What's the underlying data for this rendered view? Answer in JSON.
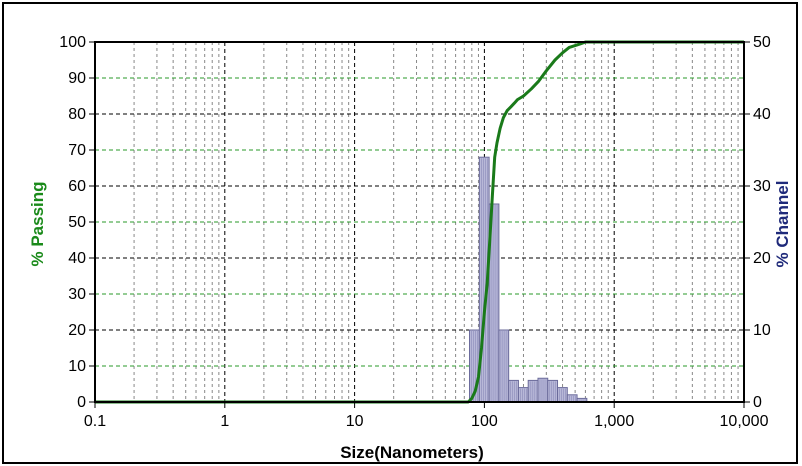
{
  "chart_data": {
    "type": "bar",
    "title": "",
    "xlabel": "Size(Nanometers)",
    "ylabel_left": "% Passing",
    "ylabel_right": "% Channel",
    "x_scale": "log",
    "xlim": [
      0.1,
      10000
    ],
    "x_ticks": [
      0.1,
      1,
      10,
      100,
      1000,
      10000
    ],
    "x_tick_labels": [
      "0.1",
      "1",
      "10",
      "100",
      "1,000",
      "10,000"
    ],
    "ylim_left": [
      0,
      100
    ],
    "y_ticks_left": [
      0,
      10,
      20,
      30,
      40,
      50,
      60,
      70,
      80,
      90,
      100
    ],
    "ylim_right": [
      0,
      50
    ],
    "y_ticks_right": [
      0,
      10,
      20,
      30,
      40,
      50
    ],
    "grid": true,
    "colors": {
      "passing": "#1a7a1a",
      "channel_fill": "#b8b8d8",
      "channel_edge": "#6a6a9a",
      "grid_major": "#000000",
      "grid_minor": "#888888",
      "grid_green": "#2a9a2a"
    },
    "series": [
      {
        "name": "% Passing",
        "axis": "left",
        "kind": "line",
        "x": [
          0.1,
          1,
          10,
          75,
          80,
          85,
          90,
          95,
          100,
          105,
          110,
          115,
          120,
          125,
          132,
          140,
          150,
          160,
          170,
          180,
          200,
          230,
          260,
          300,
          350,
          400,
          450,
          500,
          550,
          600,
          700,
          1000,
          10000
        ],
        "y": [
          0,
          0,
          0,
          0,
          1,
          3,
          7,
          15,
          25,
          33,
          45,
          57,
          68,
          72,
          76,
          79,
          81,
          82,
          83,
          84,
          85,
          87,
          89,
          92,
          95,
          97,
          98.5,
          99,
          99.5,
          100,
          100,
          100,
          100
        ]
      },
      {
        "name": "% Channel",
        "axis": "right",
        "kind": "bar",
        "bin_edges": [
          76.8,
          91.4,
          108.7,
          129.3,
          153.8,
          182.9,
          217.5,
          258.7,
          307.6,
          365.9,
          435.1,
          517.5,
          615.5,
          731.9
        ],
        "values": [
          10,
          34,
          27.5,
          10,
          3,
          2,
          3,
          3.3,
          3,
          2,
          1,
          0.5,
          0
        ]
      }
    ]
  }
}
